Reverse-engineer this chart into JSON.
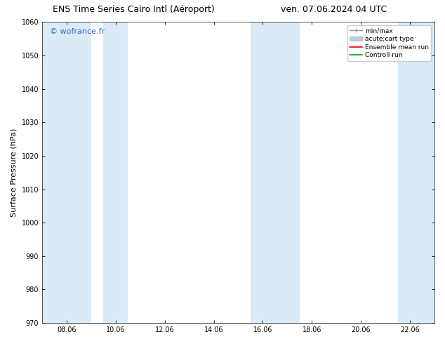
{
  "title_left": "ENS Time Series Cairo Intl (Aéroport)",
  "title_right": "ven. 07.06.2024 04 UTC",
  "ylabel": "Surface Pressure (hPa)",
  "ylim": [
    970,
    1060
  ],
  "yticks": [
    970,
    980,
    990,
    1000,
    1010,
    1020,
    1030,
    1040,
    1050,
    1060
  ],
  "x_tick_labels": [
    "08.06",
    "10.06",
    "12.06",
    "14.06",
    "16.06",
    "18.06",
    "20.06",
    "22.06"
  ],
  "x_tick_positions": [
    1,
    3,
    5,
    7,
    9,
    11,
    13,
    15
  ],
  "xlim": [
    0,
    16
  ],
  "shaded_bands": [
    {
      "x_start": 0,
      "x_end": 2
    },
    {
      "x_start": 2.5,
      "x_end": 3.5
    },
    {
      "x_start": 8.5,
      "x_end": 10.5
    },
    {
      "x_start": 14.5,
      "x_end": 16
    }
  ],
  "band_color": "#daeaf7",
  "watermark": "© wofrance.fr",
  "watermark_color": "#3366cc",
  "background_color": "#ffffff",
  "legend_labels": [
    "min/max",
    "acute;cart type",
    "Ensemble mean run",
    "Controll run"
  ],
  "legend_line_colors": [
    "#999999",
    "#bbccdd",
    "#ff0000",
    "#00aa00"
  ],
  "title_fontsize": 9,
  "tick_fontsize": 7,
  "ylabel_fontsize": 8
}
